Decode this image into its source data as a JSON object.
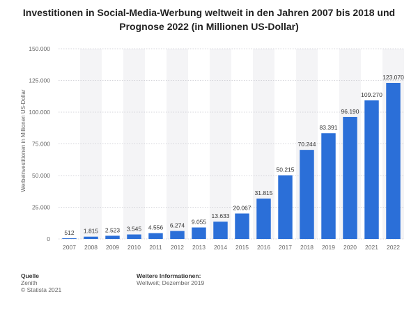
{
  "title_lines": [
    "Investitionen in Social-Media-Werbung weltweit in den Jahren 2007 bis 2018 und",
    "Prognose 2022 (in Millionen US-Dollar)"
  ],
  "footer": {
    "source_heading": "Quelle",
    "source_name": "Zenith",
    "copyright": "© Statista 2021",
    "info_heading": "Weitere Informationen:",
    "info_text": "Weltweit; Dezember 2019"
  },
  "colors": {
    "bar": "#2b6fd8",
    "band": "#f4f4f6",
    "grid": "#c9c9cf",
    "label": "#333333",
    "axis_text": "#666666"
  },
  "chart_data": {
    "type": "bar",
    "categories": [
      "2007",
      "2008",
      "2009",
      "2010",
      "2011",
      "2012",
      "2013",
      "2014",
      "2015",
      "2016",
      "2017",
      "2018",
      "2019",
      "2020",
      "2021",
      "2022"
    ],
    "values": [
      512,
      1815,
      2523,
      3545,
      4556,
      6274,
      9055,
      13633,
      20067,
      31815,
      50215,
      70244,
      83391,
      96190,
      109270,
      123070
    ],
    "value_labels": [
      "512",
      "1.815",
      "2.523",
      "3.545",
      "4.556",
      "6.274",
      "9.055",
      "13.633",
      "20.067",
      "31.815",
      "50.215",
      "70.244",
      "83.391",
      "96.190",
      "109.270",
      "123.070"
    ],
    "ylabel": "Werbeinvestitionen in Millionen US-Dollar",
    "xlabel": "",
    "ylim": [
      0,
      150000
    ],
    "yticks": [
      0,
      25000,
      50000,
      75000,
      100000,
      125000,
      150000
    ],
    "ytick_labels": [
      "0",
      "25.000",
      "50.000",
      "75.000",
      "100.000",
      "125.000",
      "150.000"
    ],
    "grid": true
  }
}
